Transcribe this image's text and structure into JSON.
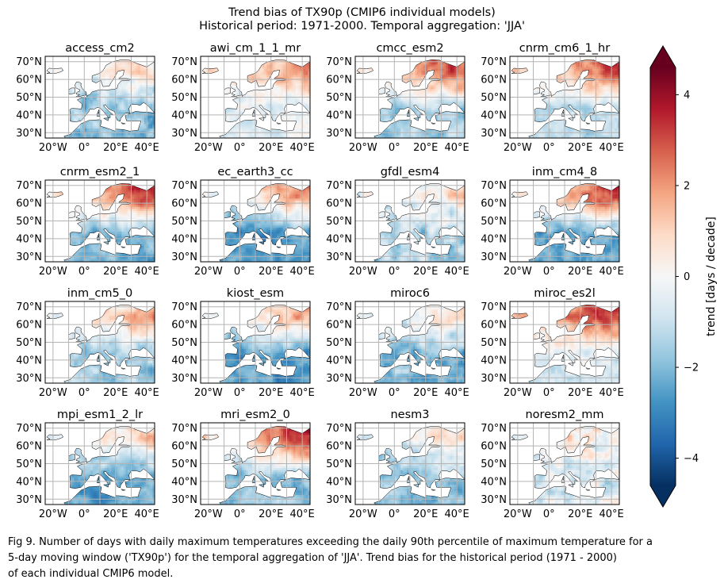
{
  "figure": {
    "title_line1": "Trend bias of TX90p (CMIP6 individual models)",
    "title_line2": "Historical period: 1971-2000. Temporal aggregation: 'JJA'",
    "caption_lines": [
      "Fig 9. Number of days with daily maximum temperatures exceeding the daily 90th percentile of maximum temperature for a",
      "5-day moving window ('TX90p') for the temporal aggregation of 'JJA'. Trend bias for the historical period (1971 - 2000)",
      "of each individual CMIP6 model."
    ]
  },
  "chart_data": {
    "type": "heatmap",
    "map_region": "Europe",
    "x_ticks": [
      "20°W",
      "0°",
      "20°E",
      "40°E"
    ],
    "y_ticks": [
      "70°N",
      "60°N",
      "50°N",
      "40°N",
      "30°N"
    ],
    "x_tick_values": [
      -20,
      0,
      20,
      40
    ],
    "y_tick_values": [
      70,
      60,
      50,
      40,
      30
    ],
    "lon_range": [
      -25,
      45
    ],
    "lat_range": [
      27,
      73
    ],
    "grid": true,
    "colormap": [
      "#053061",
      "#2166ac",
      "#4393c3",
      "#92c5de",
      "#d1e5f0",
      "#f7f7f7",
      "#fddbc7",
      "#f4a582",
      "#d6604d",
      "#b2182b",
      "#67001f"
    ],
    "colorbar": {
      "label": "trend [days / decade]",
      "ticks": [
        4,
        2,
        0,
        -2,
        -4
      ],
      "range": [
        -4.6,
        4.6
      ],
      "extend": "both"
    },
    "panels": [
      {
        "name": "access_cm2",
        "north": 0.5,
        "south": -1.8,
        "amp": 1.2
      },
      {
        "name": "awi_cm_1_1_mr",
        "north": 1.8,
        "south": -0.6,
        "amp": 1.0
      },
      {
        "name": "cmcc_esm2",
        "north": 3.0,
        "south": -1.6,
        "amp": 1.0
      },
      {
        "name": "cnrm_cm6_1_hr",
        "north": 2.8,
        "south": -1.2,
        "amp": 1.0
      },
      {
        "name": "cnrm_esm2_1",
        "north": 3.4,
        "south": -2.2,
        "amp": 1.0
      },
      {
        "name": "ec_earth3_cc",
        "north": 2.2,
        "south": -2.6,
        "amp": 1.0
      },
      {
        "name": "gfdl_esm4",
        "north": 0.8,
        "south": -1.4,
        "amp": 1.3
      },
      {
        "name": "inm_cm4_8",
        "north": 3.2,
        "south": -2.4,
        "amp": 1.0
      },
      {
        "name": "inm_cm5_0",
        "north": 1.6,
        "south": -1.6,
        "amp": 1.1
      },
      {
        "name": "kiost_esm",
        "north": 1.8,
        "south": -2.6,
        "amp": 1.0
      },
      {
        "name": "miroc6",
        "north": 0.6,
        "south": -2.0,
        "amp": 1.2
      },
      {
        "name": "miroc_es2l",
        "north": 3.2,
        "south": -0.6,
        "amp": 1.0
      },
      {
        "name": "mpi_esm1_2_lr",
        "north": 1.2,
        "south": -2.4,
        "amp": 1.0
      },
      {
        "name": "mri_esm2_0",
        "north": 3.6,
        "south": -1.8,
        "amp": 1.0
      },
      {
        "name": "nesm3",
        "north": 0.4,
        "south": -1.8,
        "amp": 1.1
      },
      {
        "name": "noresm2_mm",
        "north": 0.4,
        "south": -0.6,
        "amp": 1.5
      }
    ]
  }
}
